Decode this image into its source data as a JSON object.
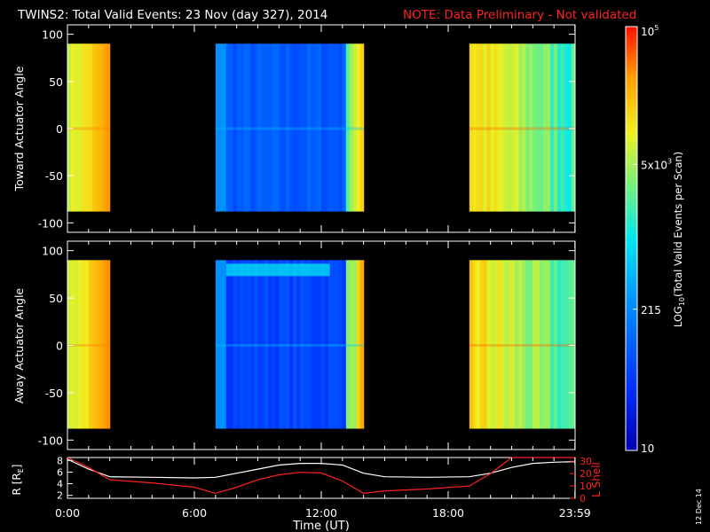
{
  "header": {
    "title": "TWINS2: Total Valid Events: 23 Nov (day 327), 2014",
    "note": "NOTE: Data Preliminary - Not validated"
  },
  "colors": {
    "background": "#000000",
    "axes": "#ffffff",
    "note": "#ff2020",
    "r_line": "#ffffff",
    "lshell_line": "#ff2020"
  },
  "colorbar": {
    "label": "LOG10(Total Valid Events per Scan)",
    "label_prefix": "LOG",
    "label_sub": "10",
    "label_suffix": "(Total Valid Events per Scan)",
    "ticks": [
      {
        "text": "10",
        "base": "10",
        "exp": "",
        "value": 10
      },
      {
        "text": "215",
        "base": "215",
        "exp": "",
        "value": 215
      },
      {
        "text": "5x10^3",
        "base": "5x10",
        "exp": "3",
        "value": 5000
      },
      {
        "text": "10^5",
        "base": "10",
        "exp": "5",
        "value": 100000
      }
    ],
    "range": [
      10,
      100000
    ],
    "scale": "log"
  },
  "footer": {
    "xlabel": "Time (UT)",
    "xticks": [
      "0:00",
      "6:00",
      "12:00",
      "18:00",
      "23:59"
    ],
    "date_stamp": "12 Dec 14"
  },
  "chart_data": [
    {
      "type": "heatmap",
      "panel": "toward",
      "ylabel": "Toward Actuator Angle",
      "yticks": [
        "100",
        "50",
        "0",
        "-50",
        "-100"
      ],
      "ylim": [
        -110,
        110
      ],
      "xlim_hours": [
        0,
        24
      ],
      "data_y_range": [
        -88,
        90
      ],
      "colormap": "rainbow (blue low, red high)",
      "segments": [
        {
          "start_hour": 0.0,
          "end_hour": 2.0,
          "level_range": [
            0.7,
            0.88
          ],
          "description": "yellow to orange"
        },
        {
          "start_hour": 7.0,
          "end_hour": 14.0,
          "level_range": [
            0.18,
            0.4
          ],
          "description": "blue, yellow near end"
        },
        {
          "start_hour": 19.0,
          "end_hour": 23.99,
          "level_range": [
            0.55,
            0.9
          ],
          "description": "orange to green-yellow"
        }
      ]
    },
    {
      "type": "heatmap",
      "panel": "away",
      "ylabel": "Away Actuator Angle",
      "yticks": [
        "100",
        "50",
        "0",
        "-50",
        "-100"
      ],
      "ylim": [
        -110,
        110
      ],
      "xlim_hours": [
        0,
        24
      ],
      "data_y_range": [
        -88,
        90
      ],
      "colormap": "rainbow (blue low, red high)",
      "segments": [
        {
          "start_hour": 0.0,
          "end_hour": 2.0,
          "level_range": [
            0.7,
            0.88
          ],
          "description": "yellow to orange"
        },
        {
          "start_hour": 7.0,
          "end_hour": 14.0,
          "level_range": [
            0.12,
            0.42
          ],
          "description": "blue with cyan band near top"
        },
        {
          "start_hour": 19.0,
          "end_hour": 23.99,
          "level_range": [
            0.55,
            0.9
          ],
          "description": "orange to green-yellow"
        }
      ]
    },
    {
      "type": "line",
      "panel": "orbit",
      "ylabel_left": "R [RE]",
      "ylabel_left_base": "R [R",
      "ylabel_left_sub": "E",
      "ylabel_left_suffix": "]",
      "ylabel_right": "L Shell",
      "yticks_left": [
        "8",
        "6",
        "4",
        "2"
      ],
      "yticks_right": [
        "30",
        "20",
        "10",
        "0"
      ],
      "ylim_left": [
        1.5,
        8.5
      ],
      "ylim_right": [
        0,
        33
      ],
      "x_hours": [
        0,
        1.0,
        2.0,
        4.0,
        6.0,
        7.0,
        8.0,
        9.0,
        10.0,
        11.0,
        12.0,
        13.0,
        14.0,
        15.0,
        17.0,
        19.0,
        20.0,
        21.0,
        22.0,
        23.0,
        23.99
      ],
      "series": [
        {
          "name": "R",
          "axis": "left",
          "y": [
            8.2,
            6.5,
            5.2,
            5.1,
            5.0,
            5.1,
            5.8,
            6.5,
            7.2,
            7.5,
            7.5,
            7.2,
            5.8,
            5.2,
            5.1,
            5.2,
            5.8,
            6.8,
            7.5,
            7.7,
            7.8
          ]
        },
        {
          "name": "L Shell",
          "axis": "right",
          "y": [
            33,
            25,
            15,
            12.5,
            9,
            4,
            9,
            15,
            19,
            21,
            20.5,
            14,
            4,
            6,
            7.5,
            10,
            20,
            33,
            33,
            33,
            33
          ]
        }
      ]
    }
  ]
}
